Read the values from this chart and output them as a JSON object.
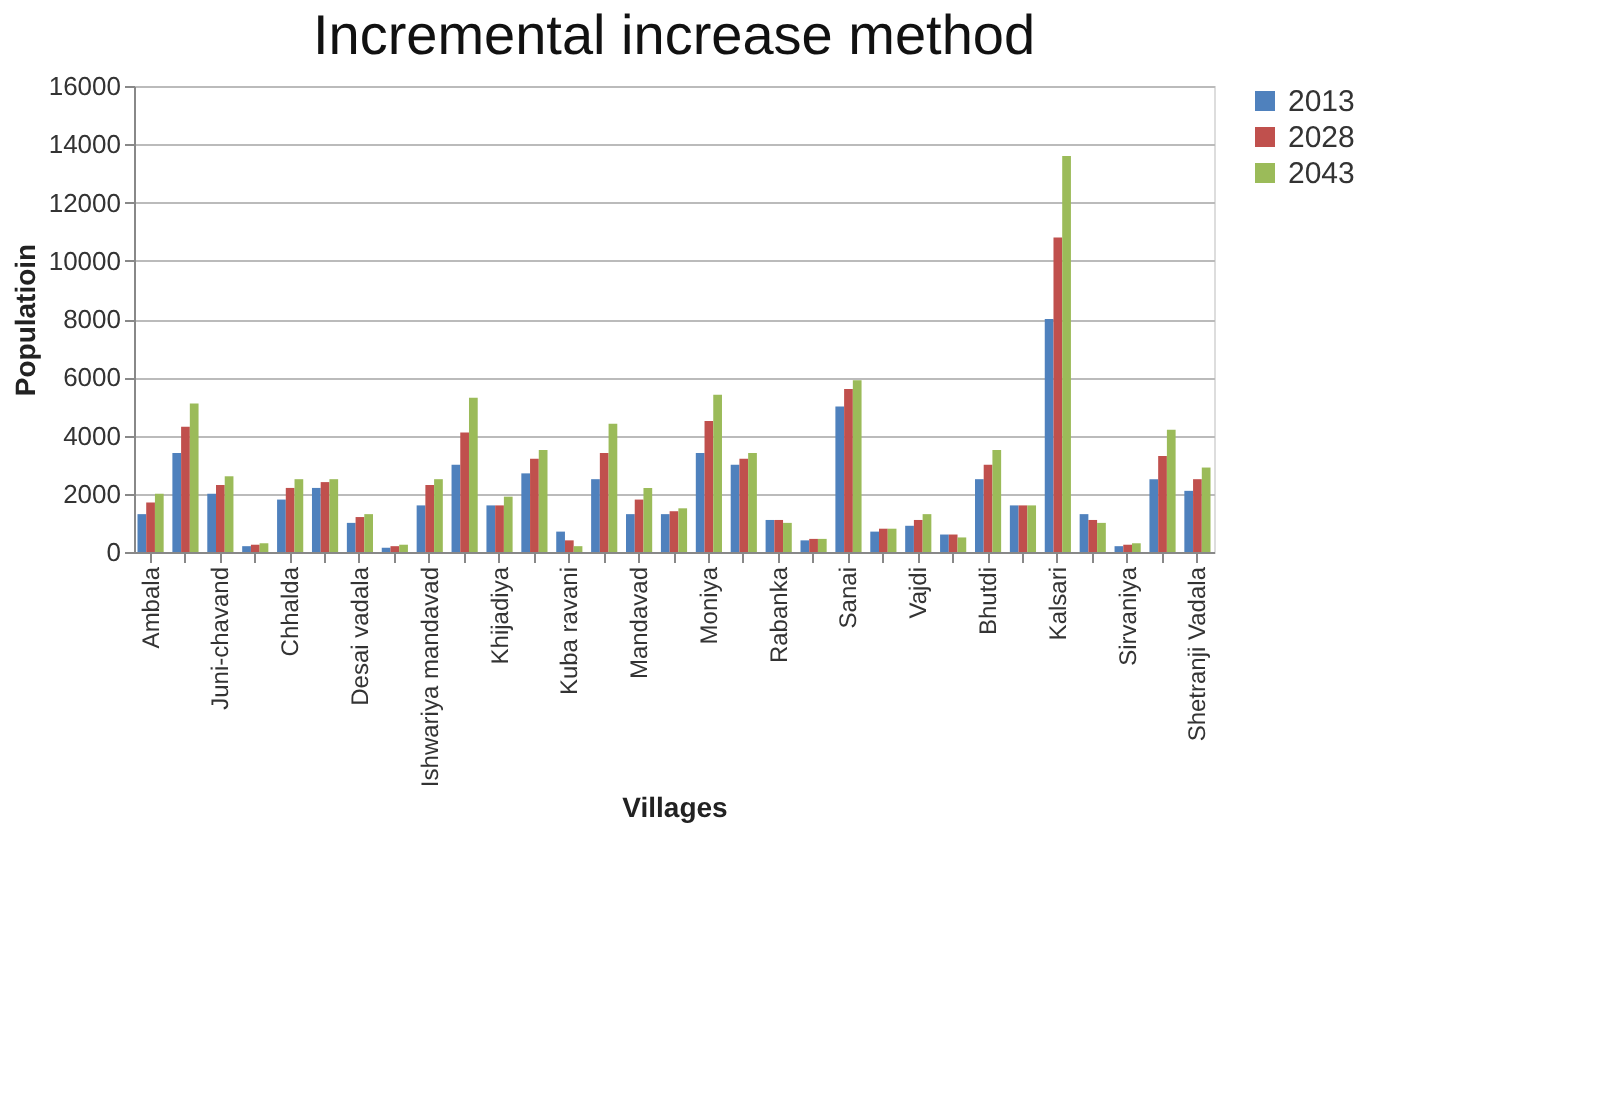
{
  "chart_data": {
    "type": "bar",
    "title": "Incremental increase method",
    "xlabel": "Villages",
    "ylabel": "Populatioin",
    "categories": [
      "Ambala",
      null,
      "Juni-chavand",
      null,
      "Chhalda",
      null,
      "Desai vadala",
      null,
      "Ishwariya mandavad",
      null,
      "Khijadiya",
      null,
      "Kuba ravani",
      null,
      "Mandavad",
      null,
      "Moniya",
      null,
      "Rabanka",
      null,
      "Sanai",
      null,
      "Vajdi",
      null,
      "Bhutdi",
      null,
      "Kalsari",
      null,
      "Sirvaniya",
      null,
      "Shetranji Vadala"
    ],
    "series": [
      {
        "name": "2013",
        "color": "#4f81bd",
        "values": [
          1300,
          3400,
          2000,
          200,
          1800,
          2200,
          1000,
          150,
          1600,
          3000,
          1600,
          2700,
          700,
          2500,
          1300,
          1300,
          3400,
          3000,
          1100,
          400,
          5000,
          700,
          900,
          600,
          2500,
          1600,
          8000,
          1300,
          200,
          2500,
          2100
        ]
      },
      {
        "name": "2028",
        "color": "#c0504d",
        "values": [
          1700,
          4300,
          2300,
          250,
          2200,
          2400,
          1200,
          200,
          2300,
          4100,
          1600,
          3200,
          400,
          3400,
          1800,
          1400,
          4500,
          3200,
          1100,
          450,
          5600,
          800,
          1100,
          600,
          3000,
          1600,
          10800,
          1100,
          250,
          3300,
          2500
        ]
      },
      {
        "name": "2043",
        "color": "#9bbb59",
        "values": [
          2000,
          5100,
          2600,
          300,
          2500,
          2500,
          1300,
          250,
          2500,
          5300,
          1900,
          3500,
          200,
          4400,
          2200,
          1500,
          5400,
          3400,
          1000,
          450,
          5900,
          800,
          1300,
          500,
          3500,
          1600,
          13600,
          1000,
          300,
          4200,
          2900
        ]
      }
    ],
    "ylim": [
      0,
      16000
    ],
    "yticks": [
      0,
      2000,
      4000,
      6000,
      8000,
      10000,
      12000,
      14000,
      16000
    ],
    "grid": "y",
    "legend": "right"
  }
}
